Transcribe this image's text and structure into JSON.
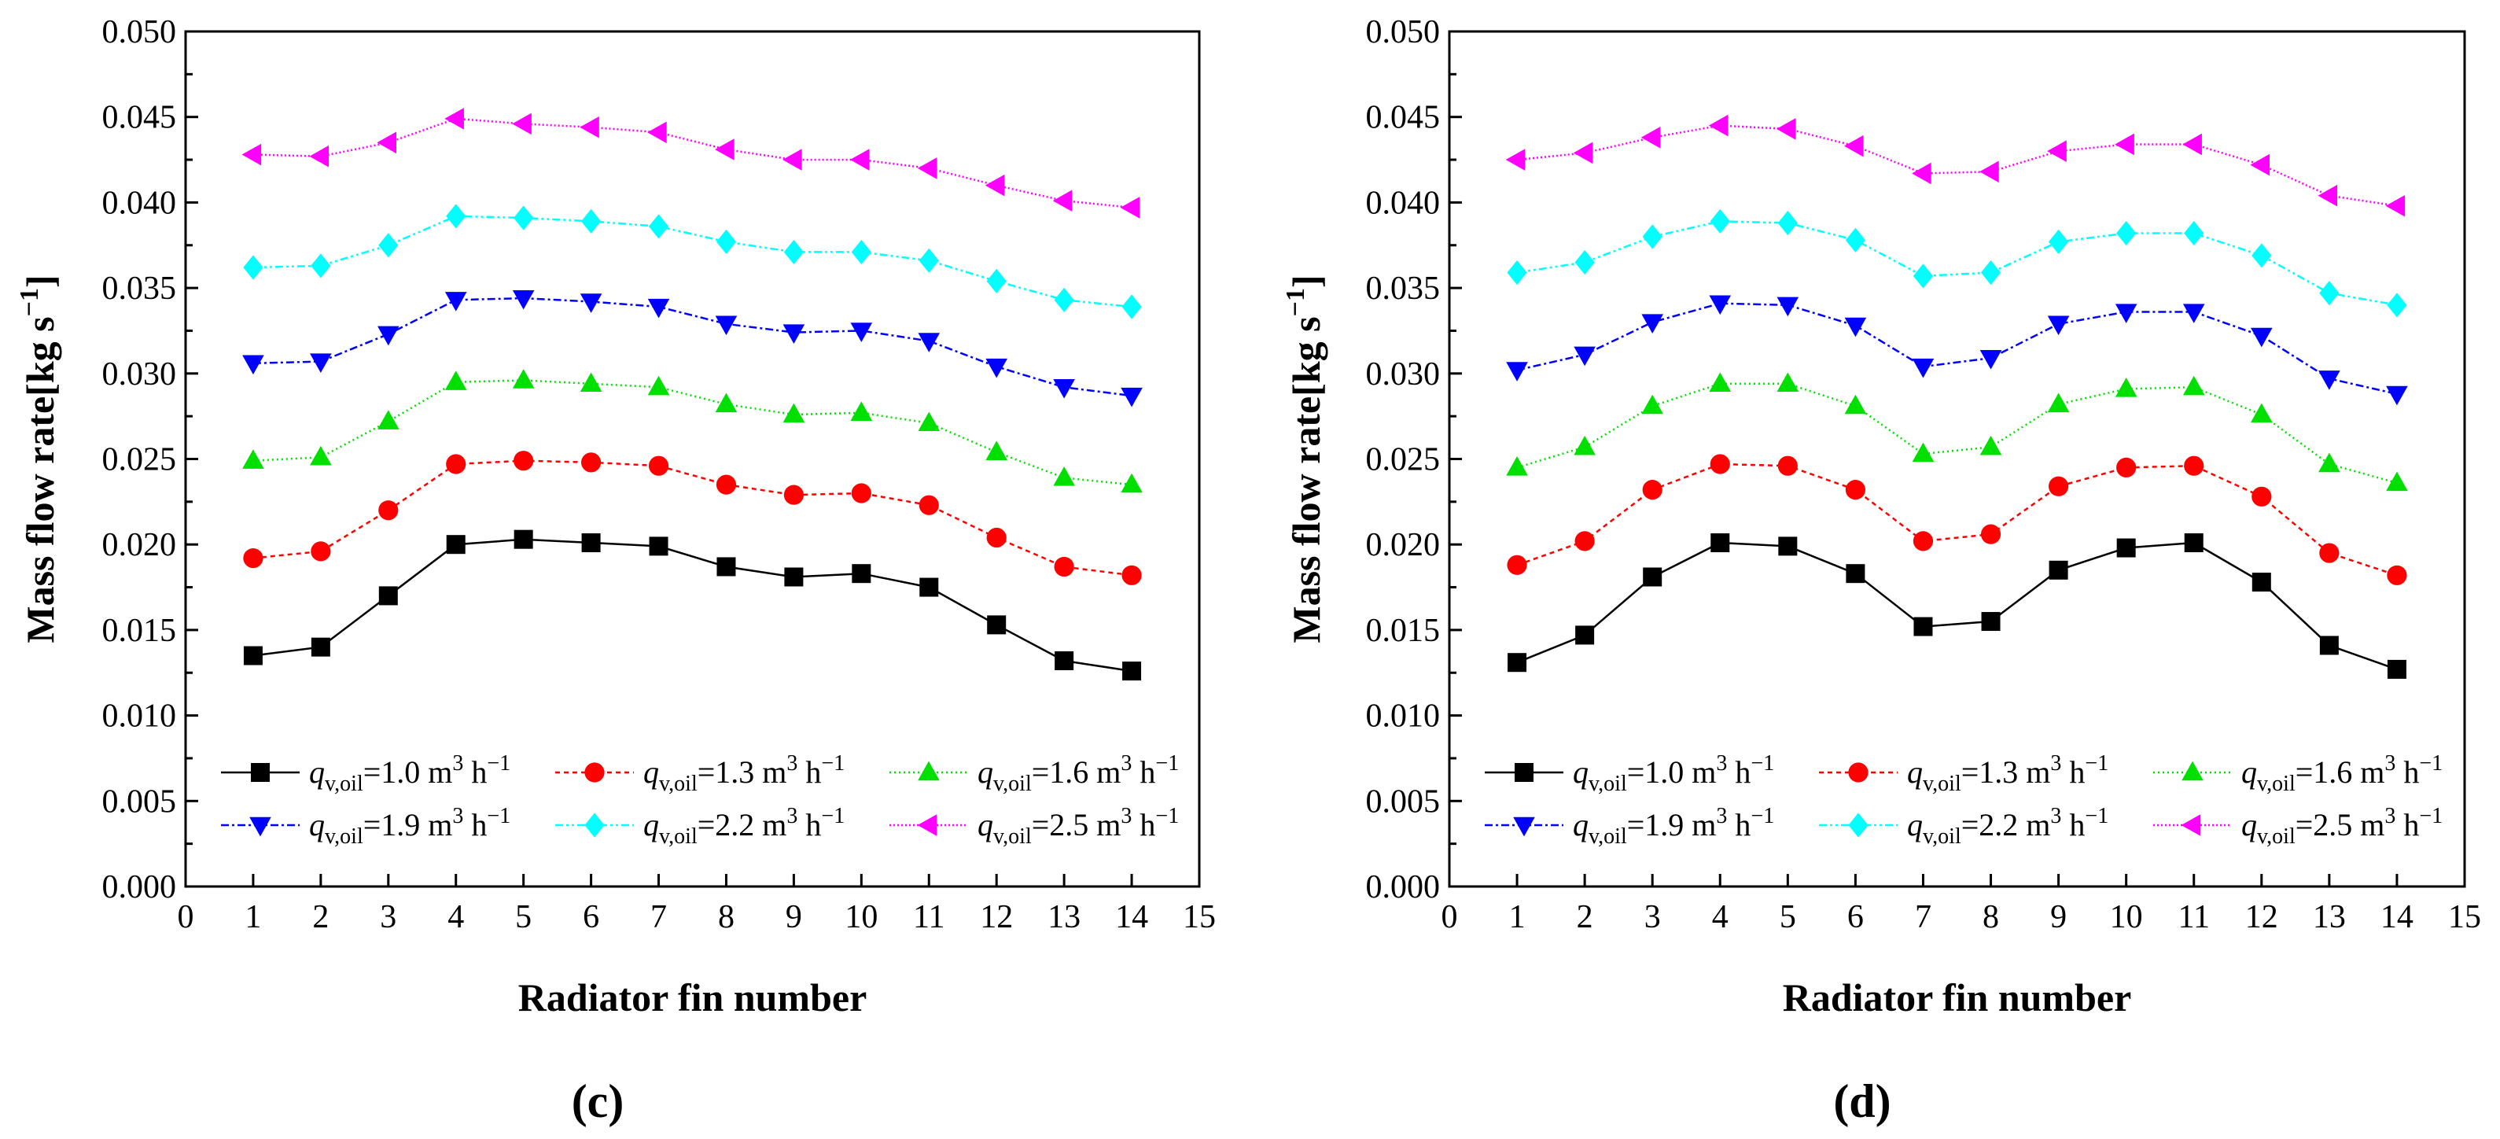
{
  "legend_labels": [
    {
      "q": "q",
      "sub": "v,oil",
      "val": "=1.0 m",
      "sup3": "3",
      "h": " h",
      "supm": "−1"
    },
    {
      "q": "q",
      "sub": "v,oil",
      "val": "=1.3 m",
      "sup3": "3",
      "h": " h",
      "supm": "−1"
    },
    {
      "q": "q",
      "sub": "v,oil",
      "val": "=1.6 m",
      "sup3": "3",
      "h": " h",
      "supm": "−1"
    },
    {
      "q": "q",
      "sub": "v,oil",
      "val": "=1.9 m",
      "sup3": "3",
      "h": " h",
      "supm": "−1"
    },
    {
      "q": "q",
      "sub": "v,oil",
      "val": "=2.2 m",
      "sup3": "3",
      "h": " h",
      "supm": "−1"
    },
    {
      "q": "q",
      "sub": "v,oil",
      "val": "=2.5 m",
      "sup3": "3",
      "h": " h",
      "supm": "−1"
    }
  ],
  "chart_data": [
    {
      "type": "line",
      "panel_label": "(c)",
      "xlabel": "Radiator fin number",
      "ylabel": "Mass flow rate[kg s",
      "ylabel_sup": "−1",
      "ylabel_close": "]",
      "xlim": [
        0,
        15
      ],
      "ylim": [
        0,
        0.05
      ],
      "xticks": [
        "0",
        "1",
        "2",
        "3",
        "4",
        "5",
        "6",
        "7",
        "8",
        "9",
        "10",
        "11",
        "12",
        "13",
        "14",
        "15"
      ],
      "yticks": [
        "0.000",
        "0.005",
        "0.010",
        "0.015",
        "0.020",
        "0.025",
        "0.030",
        "0.035",
        "0.040",
        "0.045",
        "0.050"
      ],
      "x": [
        1,
        2,
        3,
        4,
        5,
        6,
        7,
        8,
        9,
        10,
        11,
        12,
        13,
        14
      ],
      "series": [
        {
          "name": "qv,oil=1.0 m3 h-1",
          "color": "#000000",
          "marker": "square",
          "dash": "",
          "values": [
            0.0135,
            0.014,
            0.017,
            0.02,
            0.0203,
            0.0201,
            0.0199,
            0.0187,
            0.0181,
            0.0183,
            0.0175,
            0.0153,
            0.0132,
            0.0126
          ]
        },
        {
          "name": "qv,oil=1.3 m3 h-1",
          "color": "#ff0000",
          "marker": "circle",
          "dash": "6,5",
          "values": [
            0.0192,
            0.0196,
            0.022,
            0.0247,
            0.0249,
            0.0248,
            0.0246,
            0.0235,
            0.0229,
            0.023,
            0.0223,
            0.0204,
            0.0187,
            0.0182
          ]
        },
        {
          "name": "qv,oil=1.6 m3 h-1",
          "color": "#00e000",
          "marker": "triangle-up",
          "dash": "2,4",
          "values": [
            0.0249,
            0.0251,
            0.0272,
            0.0295,
            0.0296,
            0.0294,
            0.0292,
            0.0282,
            0.0276,
            0.0277,
            0.0271,
            0.0254,
            0.0239,
            0.0235
          ]
        },
        {
          "name": "qv,oil=1.9 m3 h-1",
          "color": "#0000ff",
          "marker": "triangle-down",
          "dash": "10,4,3,4",
          "values": [
            0.0306,
            0.0307,
            0.0323,
            0.0343,
            0.0344,
            0.0342,
            0.0339,
            0.0329,
            0.0324,
            0.0325,
            0.0319,
            0.0304,
            0.0292,
            0.0287
          ]
        },
        {
          "name": "qv,oil=2.2 m3 h-1",
          "color": "#00ffff",
          "marker": "diamond",
          "dash": "10,4,3,4,3,4",
          "values": [
            0.0362,
            0.0363,
            0.0375,
            0.0392,
            0.0391,
            0.0389,
            0.0386,
            0.0377,
            0.0371,
            0.0371,
            0.0366,
            0.0354,
            0.0343,
            0.0339
          ]
        },
        {
          "name": "qv,oil=2.5 m3 h-1",
          "color": "#ff00ff",
          "marker": "triangle-left",
          "dash": "2,3",
          "values": [
            0.0428,
            0.0427,
            0.0435,
            0.0449,
            0.0446,
            0.0444,
            0.0441,
            0.0431,
            0.0425,
            0.0425,
            0.042,
            0.041,
            0.0401,
            0.0397
          ]
        }
      ]
    },
    {
      "type": "line",
      "panel_label": "(d)",
      "xlabel": "Radiator fin number",
      "ylabel": "Mass flow rate[kg s",
      "ylabel_sup": "−1",
      "ylabel_close": "]",
      "xlim": [
        0,
        15
      ],
      "ylim": [
        0,
        0.05
      ],
      "xticks": [
        "0",
        "1",
        "2",
        "3",
        "4",
        "5",
        "6",
        "7",
        "8",
        "9",
        "10",
        "11",
        "12",
        "13",
        "14",
        "15"
      ],
      "yticks": [
        "0.000",
        "0.005",
        "0.010",
        "0.015",
        "0.020",
        "0.025",
        "0.030",
        "0.035",
        "0.040",
        "0.045",
        "0.050"
      ],
      "x": [
        1,
        2,
        3,
        4,
        5,
        6,
        7,
        8,
        9,
        10,
        11,
        12,
        13,
        14
      ],
      "series": [
        {
          "name": "qv,oil=1.0 m3 h-1",
          "color": "#000000",
          "marker": "square",
          "dash": "",
          "values": [
            0.0131,
            0.0147,
            0.0181,
            0.0201,
            0.0199,
            0.0183,
            0.0152,
            0.0155,
            0.0185,
            0.0198,
            0.0201,
            0.0178,
            0.0141,
            0.0127
          ]
        },
        {
          "name": "qv,oil=1.3 m3 h-1",
          "color": "#ff0000",
          "marker": "circle",
          "dash": "6,5",
          "values": [
            0.0188,
            0.0202,
            0.0232,
            0.0247,
            0.0246,
            0.0232,
            0.0202,
            0.0206,
            0.0234,
            0.0245,
            0.0246,
            0.0228,
            0.0195,
            0.0182
          ]
        },
        {
          "name": "qv,oil=1.6 m3 h-1",
          "color": "#00e000",
          "marker": "triangle-up",
          "dash": "2,4",
          "values": [
            0.0245,
            0.0257,
            0.0281,
            0.0294,
            0.0294,
            0.0281,
            0.0253,
            0.0257,
            0.0282,
            0.0291,
            0.0292,
            0.0276,
            0.0247,
            0.0236
          ]
        },
        {
          "name": "qv,oil=1.9 m3 h-1",
          "color": "#0000ff",
          "marker": "triangle-down",
          "dash": "10,4,3,4",
          "values": [
            0.0302,
            0.0311,
            0.033,
            0.0341,
            0.034,
            0.0328,
            0.0304,
            0.0309,
            0.0329,
            0.0336,
            0.0336,
            0.0322,
            0.0297,
            0.0288
          ]
        },
        {
          "name": "qv,oil=2.2 m3 h-1",
          "color": "#00ffff",
          "marker": "diamond",
          "dash": "10,4,3,4,3,4",
          "values": [
            0.0359,
            0.0365,
            0.038,
            0.0389,
            0.0388,
            0.0378,
            0.0357,
            0.0359,
            0.0377,
            0.0382,
            0.0382,
            0.0369,
            0.0347,
            0.034
          ]
        },
        {
          "name": "qv,oil=2.5 m3 h-1",
          "color": "#ff00ff",
          "marker": "triangle-left",
          "dash": "2,3",
          "values": [
            0.0425,
            0.0429,
            0.0438,
            0.0445,
            0.0443,
            0.0433,
            0.0417,
            0.0418,
            0.043,
            0.0434,
            0.0434,
            0.0422,
            0.0404,
            0.0398
          ]
        }
      ]
    }
  ]
}
